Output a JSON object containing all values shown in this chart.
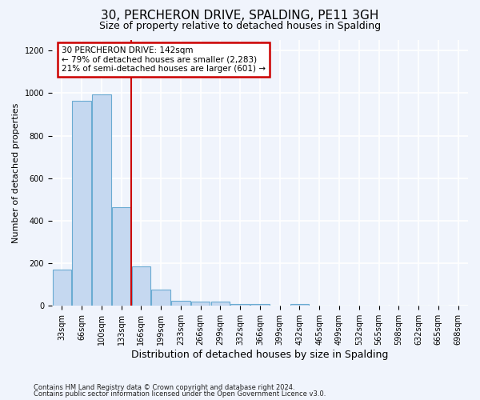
{
  "title_line1": "30, PERCHERON DRIVE, SPALDING, PE11 3GH",
  "title_line2": "Size of property relative to detached houses in Spalding",
  "xlabel": "Distribution of detached houses by size in Spalding",
  "ylabel": "Number of detached properties",
  "footnote1": "Contains HM Land Registry data © Crown copyright and database right 2024.",
  "footnote2": "Contains public sector information licensed under the Open Government Licence v3.0.",
  "annotation_line1": "30 PERCHERON DRIVE: 142sqm",
  "annotation_line2": "← 79% of detached houses are smaller (2,283)",
  "annotation_line3": "21% of semi-detached houses are larger (601) →",
  "tick_labels": [
    "33sqm",
    "66sqm",
    "100sqm",
    "133sqm",
    "166sqm",
    "199sqm",
    "233sqm",
    "266sqm",
    "299sqm",
    "332sqm",
    "366sqm",
    "399sqm",
    "432sqm",
    "465sqm",
    "499sqm",
    "532sqm",
    "565sqm",
    "598sqm",
    "632sqm",
    "665sqm",
    "698sqm"
  ],
  "bar_values": [
    170,
    965,
    995,
    465,
    185,
    75,
    25,
    20,
    20,
    10,
    10,
    0,
    10,
    0,
    0,
    0,
    0,
    0,
    0,
    0
  ],
  "bar_color": "#c5d8f0",
  "bar_edge_color": "#6aabd2",
  "red_line_x": 3.5,
  "ylim": [
    0,
    1250
  ],
  "yticks": [
    0,
    200,
    400,
    600,
    800,
    1000,
    1200
  ],
  "bg_color": "#f0f4fc",
  "grid_color": "#ffffff",
  "annotation_box_facecolor": "#ffffff",
  "annotation_box_edgecolor": "#cc0000",
  "red_line_color": "#cc0000",
  "title_fontsize": 11,
  "subtitle_fontsize": 9,
  "ylabel_fontsize": 8,
  "xlabel_fontsize": 9,
  "tick_fontsize": 7,
  "footnote_fontsize": 6
}
